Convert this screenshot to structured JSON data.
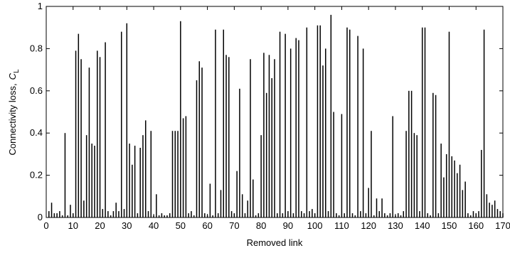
{
  "chart_data": {
    "type": "stem",
    "x_label": "Removed link",
    "y_label": "Connectivity loss,",
    "y_label_symbol": "C",
    "y_label_subscript": "L",
    "color": "#000000",
    "xlim": [
      0,
      170
    ],
    "xticks": [
      0,
      10,
      20,
      30,
      40,
      50,
      60,
      70,
      80,
      90,
      100,
      110,
      120,
      130,
      140,
      150,
      160,
      170
    ],
    "ylim": [
      0,
      1
    ],
    "yticks": [
      0,
      0.2,
      0.4,
      0.6,
      0.8,
      1
    ],
    "x": [
      1,
      2,
      3,
      4,
      5,
      6,
      7,
      8,
      9,
      10,
      11,
      12,
      13,
      14,
      15,
      16,
      17,
      18,
      19,
      20,
      21,
      22,
      23,
      24,
      25,
      26,
      27,
      28,
      29,
      30,
      31,
      32,
      33,
      34,
      35,
      36,
      37,
      38,
      39,
      40,
      41,
      42,
      43,
      44,
      45,
      46,
      47,
      48,
      49,
      50,
      51,
      52,
      53,
      54,
      55,
      56,
      57,
      58,
      59,
      60,
      61,
      62,
      63,
      64,
      65,
      66,
      67,
      68,
      69,
      70,
      71,
      72,
      73,
      74,
      75,
      76,
      77,
      78,
      79,
      80,
      81,
      82,
      83,
      84,
      85,
      86,
      87,
      88,
      89,
      90,
      91,
      92,
      93,
      94,
      95,
      96,
      97,
      98,
      99,
      100,
      101,
      102,
      103,
      104,
      105,
      106,
      107,
      108,
      109,
      110,
      111,
      112,
      113,
      114,
      115,
      116,
      117,
      118,
      119,
      120,
      121,
      122,
      123,
      124,
      125,
      126,
      127,
      128,
      129,
      130,
      131,
      132,
      133,
      134,
      135,
      136,
      137,
      138,
      139,
      140,
      141,
      142,
      143,
      144,
      145,
      146,
      147,
      148,
      149,
      150,
      151,
      152,
      153,
      154,
      155,
      156,
      157,
      158,
      159,
      160,
      161,
      162,
      163,
      164,
      165,
      166,
      167,
      168,
      169,
      170
    ],
    "values": [
      0.03,
      0.07,
      0.02,
      0.02,
      0.03,
      0.01,
      0.4,
      0.01,
      0.06,
      0.02,
      0.79,
      0.87,
      0.75,
      0.08,
      0.39,
      0.71,
      0.35,
      0.34,
      0.79,
      0.76,
      0.04,
      0.83,
      0.03,
      0.01,
      0.03,
      0.07,
      0.03,
      0.88,
      0.04,
      0.92,
      0.35,
      0.25,
      0.34,
      0.02,
      0.33,
      0.39,
      0.46,
      0.03,
      0.41,
      0.01,
      0.11,
      0.01,
      0.02,
      0.01,
      0.01,
      0.02,
      0.41,
      0.41,
      0.41,
      0.93,
      0.47,
      0.48,
      0.02,
      0.03,
      0.01,
      0.65,
      0.74,
      0.71,
      0.02,
      0.01,
      0.16,
      0.01,
      0.89,
      0.02,
      0.13,
      0.89,
      0.77,
      0.76,
      0.03,
      0.02,
      0.22,
      0.61,
      0.11,
      0.02,
      0.08,
      0.75,
      0.18,
      0.01,
      0.02,
      0.39,
      0.78,
      0.59,
      0.77,
      0.66,
      0.75,
      0.02,
      0.88,
      0.02,
      0.87,
      0.03,
      0.8,
      0.02,
      0.85,
      0.84,
      0.03,
      0.02,
      0.9,
      0.03,
      0.04,
      0.02,
      0.91,
      0.91,
      0.72,
      0.8,
      0.03,
      0.96,
      0.5,
      0.02,
      0.01,
      0.49,
      0.02,
      0.9,
      0.89,
      0.02,
      0.01,
      0.86,
      0.03,
      0.8,
      0.02,
      0.14,
      0.41,
      0.01,
      0.09,
      0.03,
      0.09,
      0.02,
      0.01,
      0.02,
      0.48,
      0.01,
      0.02,
      0.01,
      0.03,
      0.41,
      0.6,
      0.6,
      0.4,
      0.39,
      0.03,
      0.9,
      0.9,
      0.02,
      0.01,
      0.59,
      0.58,
      0.02,
      0.35,
      0.19,
      0.3,
      0.88,
      0.29,
      0.27,
      0.21,
      0.25,
      0.13,
      0.17,
      0.02,
      0.01,
      0.03,
      0.02,
      0.03,
      0.32,
      0.89,
      0.11,
      0.07,
      0.06,
      0.08,
      0.04,
      0.03,
      0.02
    ]
  }
}
